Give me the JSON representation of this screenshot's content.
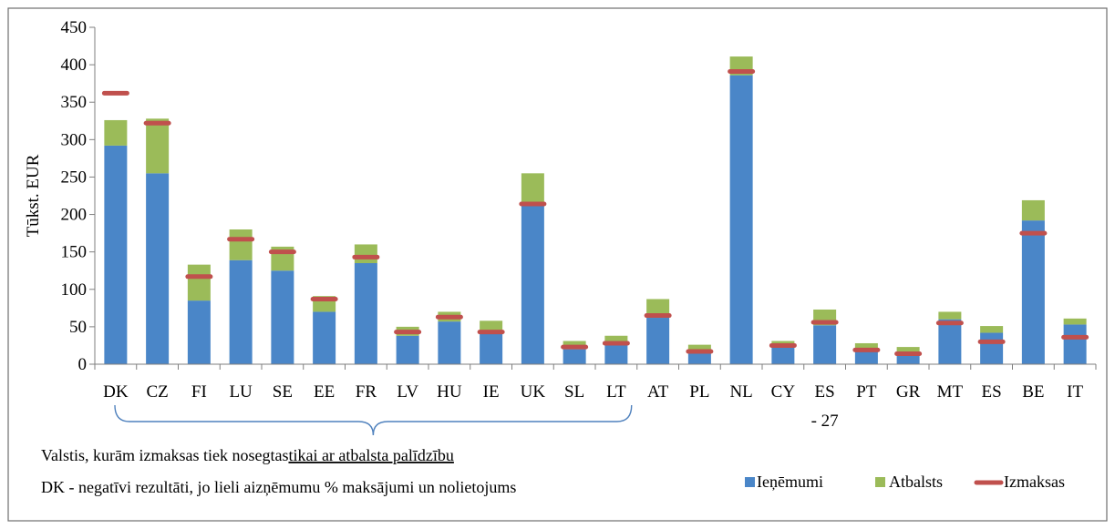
{
  "chart_data": {
    "type": "bar",
    "stacked": true,
    "ylabel": "Tūkst. EUR",
    "xlabel": "",
    "ylim": [
      0,
      450
    ],
    "ytick_step": 50,
    "yticks": [
      "0",
      "50",
      "100",
      "150",
      "200",
      "250",
      "300",
      "350",
      "400",
      "450"
    ],
    "grid": false,
    "legend_position": "bottom-right",
    "categories": [
      "DK",
      "CZ",
      "FI",
      "LU",
      "SE",
      "EE",
      "FR",
      "LV",
      "HU",
      "IE",
      "UK",
      "SL",
      "LT",
      "AT",
      "PL",
      "NL",
      "CY",
      "ES",
      "PT",
      "GR",
      "MT",
      "ES",
      "BE",
      "IT"
    ],
    "category_sublabels": {
      "17": "- 27"
    },
    "series": [
      {
        "name": "Ieņēmumi",
        "kind": "bar",
        "color": "#4a86c8",
        "values": [
          292,
          255,
          85,
          139,
          125,
          70,
          135,
          38,
          57,
          41,
          212,
          20,
          26,
          62,
          15,
          386,
          24,
          52,
          18,
          12,
          60,
          42,
          192,
          53
        ]
      },
      {
        "name": "Atbalsts",
        "kind": "bar",
        "color": "#9bbb59",
        "values": [
          34,
          73,
          48,
          41,
          32,
          21,
          25,
          12,
          13,
          17,
          43,
          11,
          12,
          25,
          11,
          25,
          7,
          21,
          10,
          11,
          10,
          9,
          27,
          8
        ]
      },
      {
        "name": "Izmaksas",
        "kind": "marker",
        "color": "#c0504d",
        "values": [
          362,
          322,
          117,
          167,
          150,
          87,
          143,
          43,
          63,
          43,
          214,
          23,
          28,
          65,
          17,
          391,
          25,
          56,
          19,
          14,
          55,
          30,
          175,
          36
        ]
      }
    ],
    "annotations": {
      "bracket_from": "DK",
      "bracket_to": "LT",
      "line1_prefix": "Valstis,  kurām izmaksas tiek nosegtas",
      "line1_underlined": "tikai ar atbalsta palīdzību",
      "line2": "DK - negatīvi rezultāti, jo lieli  aizņēmumu % maksājumi un nolietojums"
    }
  }
}
